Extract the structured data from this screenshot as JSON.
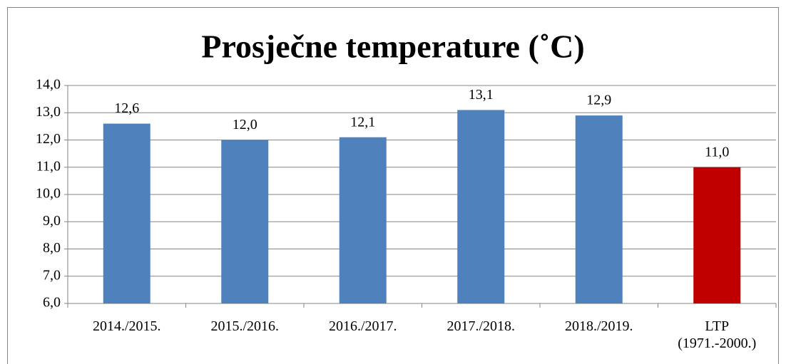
{
  "chart_data": {
    "type": "bar",
    "title": "Prosječne temperature (˚C)",
    "categories": [
      "2014./2015.",
      "2015./2016.",
      "2016./2017.",
      "2017./2018.",
      "2018./2019.",
      "LTP (1971.-2000.)"
    ],
    "values": [
      12.6,
      12.0,
      12.1,
      13.1,
      12.9,
      11.0
    ],
    "value_labels": [
      "12,6",
      "12,0",
      "12,1",
      "13,1",
      "12,9",
      "11,0"
    ],
    "colors": [
      "#4f81bd",
      "#4f81bd",
      "#4f81bd",
      "#4f81bd",
      "#4f81bd",
      "#c00000"
    ],
    "ylim": [
      6,
      14
    ],
    "yticks": [
      {
        "value": 6,
        "label": "6,0"
      },
      {
        "value": 7,
        "label": "7,0"
      },
      {
        "value": 8,
        "label": "8,0"
      },
      {
        "value": 9,
        "label": "9,0"
      },
      {
        "value": 10,
        "label": "10,0"
      },
      {
        "value": 11,
        "label": "11,0"
      },
      {
        "value": 12,
        "label": "12,0"
      },
      {
        "value": 13,
        "label": "13,0"
      },
      {
        "value": 14,
        "label": "14,0"
      }
    ],
    "grid": true
  }
}
